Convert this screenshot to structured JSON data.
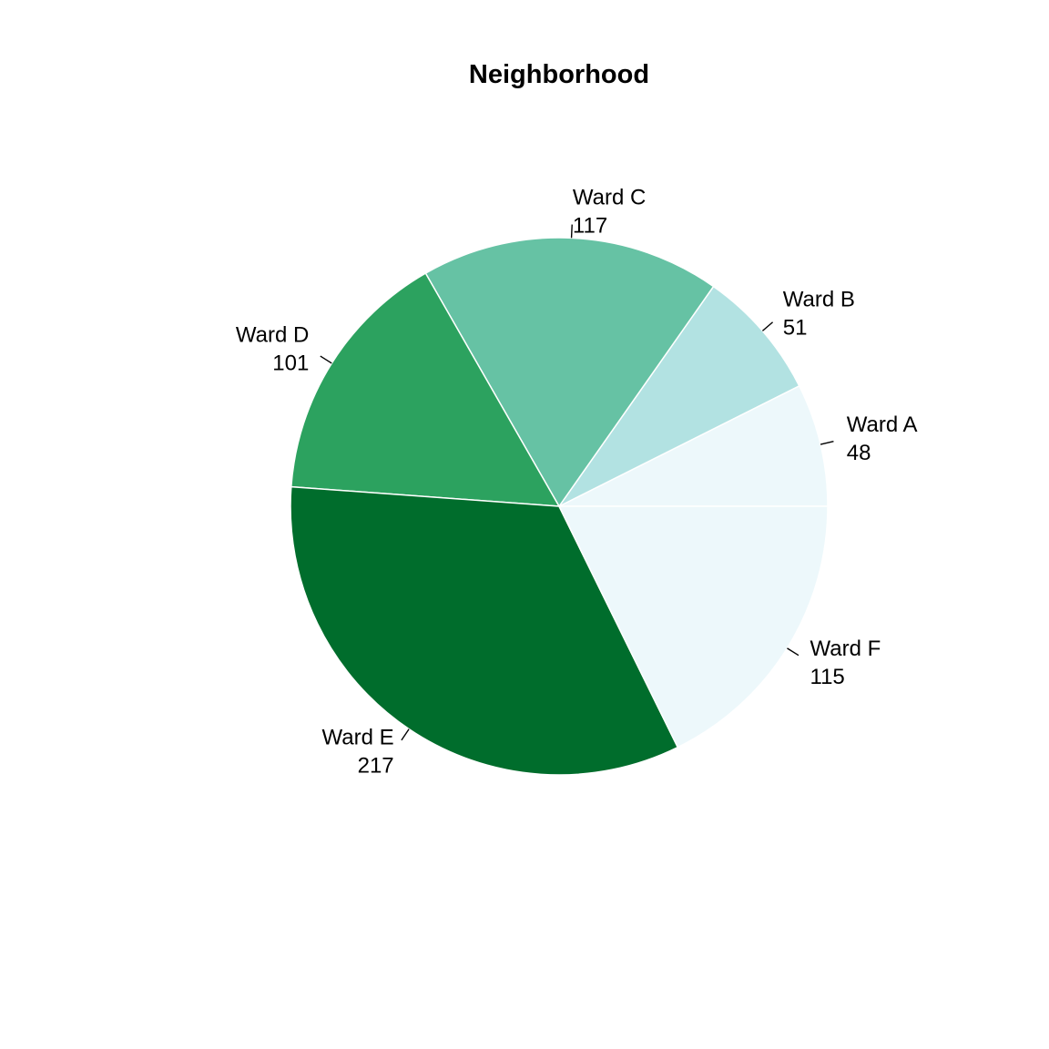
{
  "chart_data": {
    "type": "pie",
    "title": "Neighborhood",
    "slices": [
      {
        "label": "Ward A",
        "value": 48,
        "color": "#edf8fb"
      },
      {
        "label": "Ward B",
        "value": 51,
        "color": "#b2e2e2"
      },
      {
        "label": "Ward C",
        "value": 117,
        "color": "#66c2a4"
      },
      {
        "label": "Ward D",
        "value": 101,
        "color": "#2ca25f"
      },
      {
        "label": "Ward E",
        "value": 217,
        "color": "#006d2c"
      },
      {
        "label": "Ward F",
        "value": 115,
        "color": "#edf8fb"
      }
    ],
    "start_angle_deg": 0,
    "direction": "counterclockwise",
    "legend": "none"
  }
}
